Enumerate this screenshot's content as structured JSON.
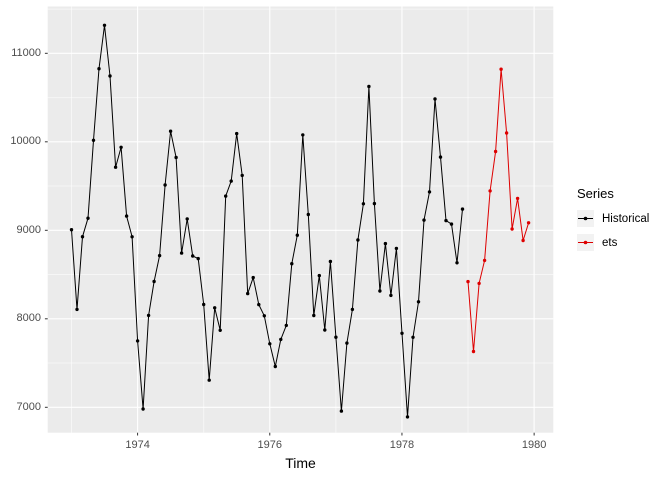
{
  "chart_data": {
    "type": "line",
    "title": "",
    "xlabel": "Time",
    "ylabel": "",
    "xlim": [
      1972.64,
      1980.29
    ],
    "ylim": [
      6713,
      11529
    ],
    "x_major_ticks": [
      1974,
      1976,
      1978,
      1980
    ],
    "x_minor_gridlines": [
      1973,
      1975,
      1977,
      1979
    ],
    "y_major_ticks": [
      7000,
      8000,
      9000,
      10000,
      11000
    ],
    "y_minor_gridlines": [
      7500,
      8500,
      9500,
      10500,
      11500
    ],
    "grid": true,
    "legend_position": "right",
    "frequency": "monthly",
    "series": [
      {
        "name": "Historical",
        "color": "#000000",
        "start": 1973.0,
        "values": [
          9007,
          8106,
          8928,
          9137,
          10017,
          10826,
          11317,
          10744,
          9713,
          9938,
          9161,
          8927,
          7750,
          6981,
          8038,
          8422,
          8714,
          9512,
          10120,
          9823,
          8743,
          9129,
          8710,
          8680,
          8162,
          7306,
          8124,
          7870,
          9387,
          9556,
          10093,
          9620,
          8285,
          8466,
          8160,
          8034,
          7717,
          7461,
          7767,
          7925,
          8623,
          8945,
          10078,
          9179,
          8037,
          8488,
          7874,
          8647,
          7792,
          6957,
          7726,
          8106,
          8890,
          9299,
          10625,
          9302,
          8314,
          8850,
          8265,
          8796,
          7836,
          6892,
          7791,
          8192,
          9115,
          9434,
          10484,
          9827,
          9110,
          9070,
          8633,
          9240
        ]
      },
      {
        "name": "ets",
        "color": "#de0000",
        "start": 1979.0,
        "values": [
          8420,
          7630,
          8400,
          8660,
          9445,
          9890,
          10820,
          10100,
          9015,
          9360,
          8885,
          9085
        ]
      }
    ]
  },
  "axes": {
    "x_title": "Time",
    "x_tick_labels": [
      "1974",
      "1976",
      "1978",
      "1980"
    ],
    "y_tick_labels": [
      "7000",
      "8000",
      "9000",
      "10000",
      "11000"
    ]
  },
  "legend": {
    "title": "Series",
    "items": [
      {
        "label": "Historical",
        "color": "#000000"
      },
      {
        "label": "ets",
        "color": "#de0000"
      }
    ]
  },
  "colors": {
    "panel_bg": "#ebebeb",
    "gridline": "#ffffff",
    "axis_text": "#4d4d4d",
    "tick_mark": "#333333",
    "legend_key_bg": "#f2f2f2",
    "outer_bg": "#ffffff"
  }
}
